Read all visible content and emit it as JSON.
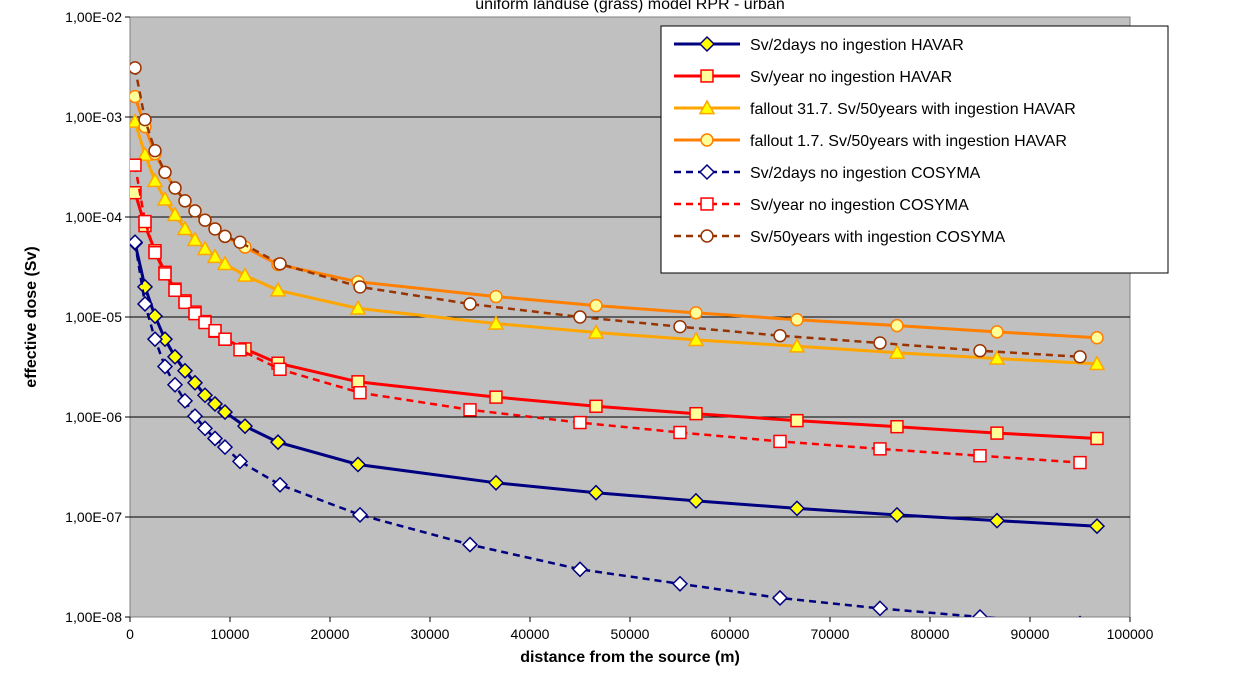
{
  "chart_data": {
    "type": "line",
    "title": "uniform landuse (grass) model RPR - urban",
    "xlabel": "distance from the source (m)",
    "ylabel": "effective dose (Sv)",
    "xlim": [
      0,
      100000
    ],
    "ylim": [
      1e-08,
      0.01
    ],
    "yscale": "log",
    "grid": "horizontal",
    "legend_position": "top-right",
    "plot_background": "#c0c0c0",
    "xticks": [
      0,
      10000,
      20000,
      30000,
      40000,
      50000,
      60000,
      70000,
      80000,
      90000,
      100000
    ],
    "xtick_labels": [
      "0",
      "10000",
      "20000",
      "30000",
      "40000",
      "50000",
      "60000",
      "70000",
      "80000",
      "90000",
      "100000"
    ],
    "yticks": [
      1e-08,
      1e-07,
      1e-06,
      1e-05,
      0.0001,
      0.001,
      0.01
    ],
    "ytick_labels": [
      "1,00E-08",
      "1,00E-07",
      "1,00E-06",
      "1,00E-05",
      "1,00E-04",
      "1,00E-03",
      "1,00E-02"
    ],
    "series": [
      {
        "name": "Sv/2days no ingestion HAVAR",
        "color": "#000080",
        "line": "solid",
        "marker": "diamond",
        "marker_fill": "#ffff00",
        "x": [
          500,
          1500,
          2500,
          3500,
          4500,
          5500,
          6500,
          7500,
          8500,
          9500,
          11500,
          14800,
          22800,
          36600,
          46600,
          56600,
          66700,
          76700,
          86700,
          96700
        ],
        "y": [
          5.5e-05,
          2e-05,
          1.02e-05,
          6e-06,
          4e-06,
          2.9e-06,
          2.2e-06,
          1.65e-06,
          1.35e-06,
          1.12e-06,
          8.1e-07,
          5.6e-07,
          3.35e-07,
          2.2e-07,
          1.75e-07,
          1.45e-07,
          1.22e-07,
          1.05e-07,
          9.2e-08,
          8.1e-08
        ]
      },
      {
        "name": "Sv/year no ingestion HAVAR",
        "color": "#ff0000",
        "line": "solid",
        "marker": "square",
        "marker_fill": "#ffff99",
        "x": [
          500,
          1500,
          2500,
          3500,
          4500,
          5500,
          6500,
          7500,
          8500,
          9500,
          11500,
          14800,
          22800,
          36600,
          46600,
          56600,
          66700,
          76700,
          86700,
          96700
        ],
        "y": [
          0.000175,
          8.2e-05,
          4.6e-05,
          2.8e-05,
          1.9e-05,
          1.45e-05,
          1.12e-05,
          9e-06,
          7.2e-06,
          6e-06,
          4.8e-06,
          3.45e-06,
          2.25e-06,
          1.58e-06,
          1.28e-06,
          1.08e-06,
          9.2e-07,
          8e-07,
          6.9e-07,
          6.1e-07
        ]
      },
      {
        "name": "fallout 31.7. Sv/50years with ingestion HAVAR",
        "color": "#ffa500",
        "line": "solid",
        "marker": "triangle",
        "marker_fill": "#ffff00",
        "x": [
          500,
          1500,
          2500,
          3500,
          4500,
          5500,
          6500,
          7500,
          8500,
          9500,
          11500,
          14800,
          22800,
          36600,
          46600,
          56600,
          66700,
          76700,
          86700,
          96700
        ],
        "y": [
          0.0009,
          0.00042,
          0.00023,
          0.00015,
          0.000105,
          7.6e-05,
          5.9e-05,
          4.8e-05,
          4e-05,
          3.4e-05,
          2.6e-05,
          1.85e-05,
          1.22e-05,
          8.6e-06,
          7e-06,
          5.9e-06,
          5.1e-06,
          4.4e-06,
          3.85e-06,
          3.4e-06
        ]
      },
      {
        "name": "fallout 1.7. Sv/50years with ingestion HAVAR",
        "color": "#ff7f00",
        "line": "solid",
        "marker": "circle",
        "marker_fill": "#ffff99",
        "x": [
          500,
          1500,
          2500,
          3500,
          4500,
          5500,
          6500,
          7500,
          8500,
          9500,
          11500,
          14800,
          22800,
          36600,
          46600,
          56600,
          66700,
          76700,
          86700,
          96700
        ],
        "y": [
          0.0016,
          0.0008,
          0.00043,
          0.00028,
          0.000195,
          0.000145,
          0.000115,
          9.3e-05,
          7.6e-05,
          6.4e-05,
          5e-05,
          3.35e-05,
          2.25e-05,
          1.6e-05,
          1.3e-05,
          1.1e-05,
          9.4e-06,
          8.2e-06,
          7.1e-06,
          6.2e-06
        ]
      },
      {
        "name": "Sv/2days no ingestion COSYMA",
        "color": "#000080",
        "line": "dashed",
        "marker": "diamond",
        "marker_fill": "#ffffff",
        "x": [
          500,
          1500,
          2500,
          3500,
          4500,
          5500,
          6500,
          7500,
          8500,
          9500,
          11000,
          15000,
          23000,
          34000,
          45000,
          55000,
          65000,
          75000,
          85000,
          95000
        ],
        "y": [
          5.6e-05,
          1.35e-05,
          6e-06,
          3.2e-06,
          2.1e-06,
          1.45e-06,
          1.02e-06,
          7.7e-07,
          6.1e-07,
          5e-07,
          3.6e-07,
          2.1e-07,
          1.05e-07,
          5.3e-08,
          3e-08,
          2.15e-08,
          1.55e-08,
          1.22e-08,
          1e-08,
          8.6e-09
        ]
      },
      {
        "name": "Sv/year no ingestion COSYMA",
        "color": "#ff0000",
        "line": "dashed",
        "marker": "square",
        "marker_fill": "#ffffff",
        "x": [
          500,
          1500,
          2500,
          3500,
          4500,
          5500,
          6500,
          7500,
          8500,
          9500,
          11000,
          15000,
          23000,
          34000,
          45000,
          55000,
          65000,
          75000,
          85000,
          95000
        ],
        "y": [
          0.00033,
          9e-05,
          4.4e-05,
          2.7e-05,
          1.85e-05,
          1.4e-05,
          1.08e-05,
          8.8e-06,
          7.3e-06,
          6e-06,
          4.7e-06,
          3e-06,
          1.75e-06,
          1.18e-06,
          8.8e-07,
          7e-07,
          5.7e-07,
          4.8e-07,
          4.1e-07,
          3.5e-07
        ]
      },
      {
        "name": "Sv/50years with ingestion COSYMA",
        "color": "#993300",
        "line": "dashed",
        "marker": "circle",
        "marker_fill": "#ffffff",
        "x": [
          500,
          1500,
          2500,
          3500,
          4500,
          5500,
          6500,
          7500,
          8500,
          9500,
          11000,
          15000,
          23000,
          34000,
          45000,
          55000,
          65000,
          75000,
          85000,
          95000
        ],
        "y": [
          0.0031,
          0.00094,
          0.00046,
          0.00028,
          0.000195,
          0.000145,
          0.000115,
          9.3e-05,
          7.6e-05,
          6.4e-05,
          5.6e-05,
          3.4e-05,
          2e-05,
          1.35e-05,
          1e-05,
          8e-06,
          6.5e-06,
          5.5e-06,
          4.6e-06,
          4e-06
        ]
      }
    ]
  }
}
